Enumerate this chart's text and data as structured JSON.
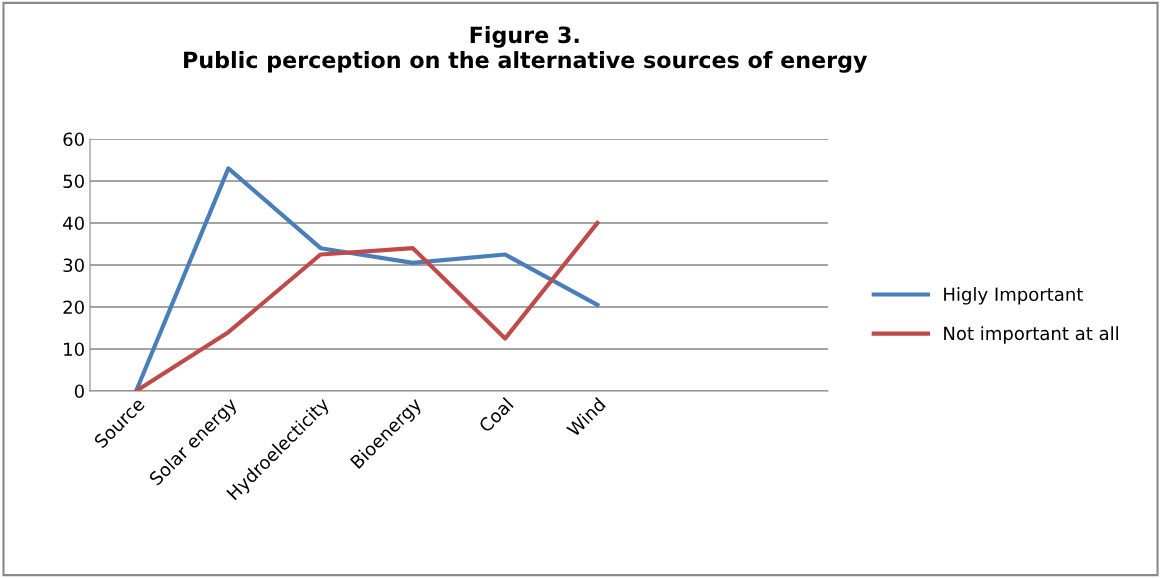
{
  "chart_data": {
    "type": "line",
    "title": "Figure 3.\nPublic perception on the alternative sources of energy",
    "categories": [
      "Source",
      "Solar energy",
      "Hydroelecticity",
      "Bioenergy",
      "Coal",
      "Wind",
      null,
      null
    ],
    "series": [
      {
        "name": "Higly Important",
        "color": "#4a7ebb",
        "values": [
          0,
          53,
          34,
          30.5,
          32.5,
          20.5,
          null,
          null
        ]
      },
      {
        "name": "Not important at all",
        "color": "#be4b48",
        "values": [
          0,
          14,
          32.5,
          34,
          12.5,
          40,
          null,
          null
        ]
      }
    ],
    "ylim": [
      0,
      60
    ],
    "yticks": [
      0,
      10,
      20,
      30,
      40,
      50,
      60
    ],
    "grid": "y",
    "legend": "right",
    "marker": "none",
    "line_style": "solid"
  }
}
